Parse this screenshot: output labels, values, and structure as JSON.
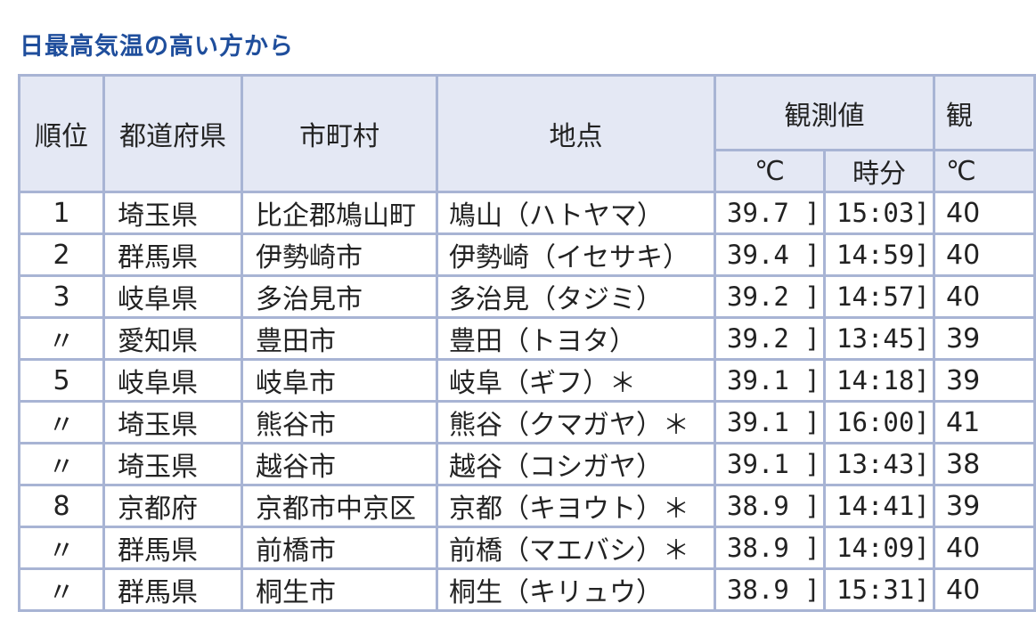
{
  "title": "日最高気温の高い方から",
  "header": {
    "rank": "順位",
    "prefecture": "都道府県",
    "city": "市町村",
    "point": "地点",
    "observed": "観測値",
    "next_partial": "観",
    "celsius": "℃",
    "time": "時分",
    "next_sub_partial": "℃"
  },
  "rows": [
    {
      "rank": "1",
      "prefecture": "埼玉県",
      "city": "比企郡鳩山町",
      "point": "鳩山（ハトヤマ）",
      "temp": "39.7 ]",
      "time": "15:03]",
      "next": "40"
    },
    {
      "rank": "2",
      "prefecture": "群馬県",
      "city": "伊勢崎市",
      "point": "伊勢崎（イセサキ）",
      "temp": "39.4 ]",
      "time": "14:59]",
      "next": "40"
    },
    {
      "rank": "3",
      "prefecture": "岐阜県",
      "city": "多治見市",
      "point": "多治見（タジミ）",
      "temp": "39.2 ]",
      "time": "14:57]",
      "next": "40"
    },
    {
      "rank": "〃",
      "prefecture": "愛知県",
      "city": "豊田市",
      "point": "豊田（トヨタ）",
      "temp": "39.2 ]",
      "time": "13:45]",
      "next": "39"
    },
    {
      "rank": "5",
      "prefecture": "岐阜県",
      "city": "岐阜市",
      "point": "岐阜（ギフ）＊",
      "temp": "39.1 ]",
      "time": "14:18]",
      "next": "39"
    },
    {
      "rank": "〃",
      "prefecture": "埼玉県",
      "city": "熊谷市",
      "point": "熊谷（クマガヤ）＊",
      "temp": "39.1 ]",
      "time": "16:00]",
      "next": "41"
    },
    {
      "rank": "〃",
      "prefecture": "埼玉県",
      "city": "越谷市",
      "point": "越谷（コシガヤ）",
      "temp": "39.1 ]",
      "time": "13:43]",
      "next": "38"
    },
    {
      "rank": "8",
      "prefecture": "京都府",
      "city": "京都市中京区",
      "point": "京都（キヨウト）＊",
      "temp": "38.9 ]",
      "time": "14:41]",
      "next": "39"
    },
    {
      "rank": "〃",
      "prefecture": "群馬県",
      "city": "前橋市",
      "point": "前橋（マエバシ）＊",
      "temp": "38.9 ]",
      "time": "14:09]",
      "next": "40"
    },
    {
      "rank": "〃",
      "prefecture": "群馬県",
      "city": "桐生市",
      "point": "桐生（キリュウ）",
      "temp": "38.9 ]",
      "time": "15:31]",
      "next": "40"
    }
  ]
}
